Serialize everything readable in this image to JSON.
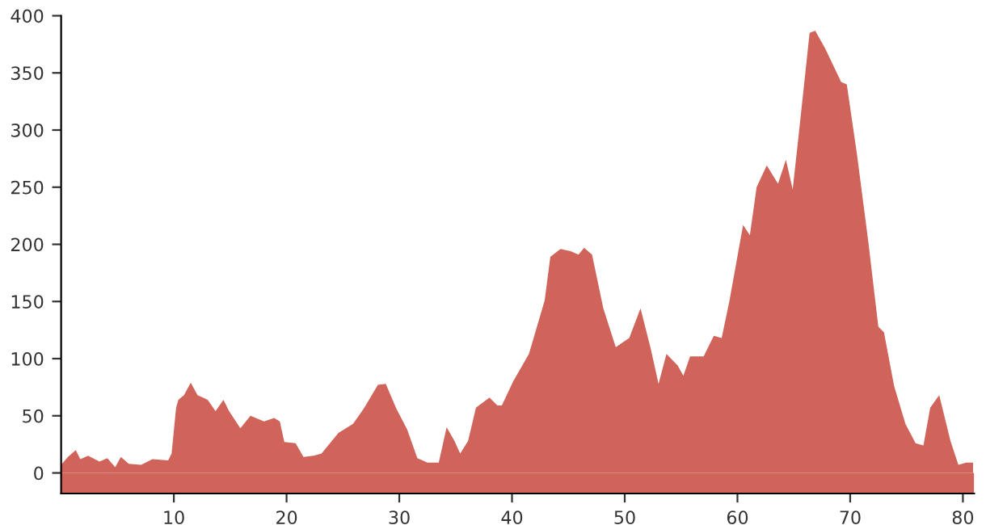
{
  "chart_data": {
    "type": "area",
    "color": "#d0645a",
    "grid": false,
    "bands": [
      {
        "axis": "y",
        "from": -18,
        "to": 0,
        "color": "#d0645a"
      }
    ],
    "xlim": [
      0,
      81
    ],
    "xticks": [
      10,
      20,
      30,
      40,
      50,
      60,
      70,
      80
    ],
    "ylim": [
      -18,
      400
    ],
    "yticks": [
      0,
      50,
      100,
      150,
      200,
      250,
      300,
      350,
      400
    ],
    "x": [
      0,
      0.6,
      1.3,
      1.7,
      2.4,
      3.4,
      4.1,
      4.8,
      5.3,
      6.0,
      7.1,
      8.1,
      9.5,
      9.8,
      10.2,
      10.4,
      10.9,
      11.5,
      12.1,
      13.0,
      13.7,
      14.4,
      14.9,
      15.9,
      16.8,
      18.0,
      18.9,
      19.4,
      19.8,
      20.8,
      21.5,
      22.4,
      23.1,
      24.6,
      25.9,
      26.9,
      28.1,
      28.8,
      29.7,
      30.7,
      31.6,
      32.5,
      33.5,
      34.2,
      34.9,
      35.4,
      36.1,
      36.8,
      38.0,
      38.7,
      39.1,
      40.1,
      41.5,
      42.9,
      43.4,
      44.3,
      45.2,
      45.9,
      46.4,
      47.1,
      48.1,
      49.2,
      50.4,
      51.4,
      52.3,
      53.0,
      53.7,
      54.7,
      55.2,
      55.8,
      57.0,
      57.9,
      58.6,
      59.3,
      60.5,
      61.1,
      61.7,
      62.6,
      63.6,
      64.3,
      64.9,
      65.5,
      66.4,
      66.9,
      67.8,
      69.2,
      69.7,
      70.6,
      71.6,
      72.5,
      73.0,
      73.9,
      74.9,
      75.8,
      76.5,
      77.1,
      77.9,
      78.9,
      79.6,
      80.3,
      80.9
    ],
    "values": [
      7,
      14,
      20,
      12,
      15,
      10,
      13,
      5,
      14,
      8,
      7,
      12,
      11,
      17,
      57,
      64,
      68,
      79,
      68,
      64,
      54,
      64,
      54,
      39,
      50,
      45,
      48,
      45,
      27,
      26,
      14,
      15,
      17,
      35,
      43,
      57,
      77,
      78,
      57,
      38,
      13,
      9,
      9,
      40,
      28,
      17,
      28,
      57,
      66,
      59,
      59,
      80,
      104,
      151,
      189,
      196,
      194,
      191,
      197,
      191,
      144,
      110,
      118,
      144,
      109,
      78,
      104,
      94,
      85,
      102,
      102,
      120,
      118,
      151,
      217,
      208,
      250,
      269,
      253,
      274,
      248,
      302,
      385,
      387,
      371,
      342,
      340,
      279,
      203,
      128,
      123,
      76,
      43,
      26,
      24,
      57,
      68,
      28,
      7,
      9,
      9
    ]
  }
}
